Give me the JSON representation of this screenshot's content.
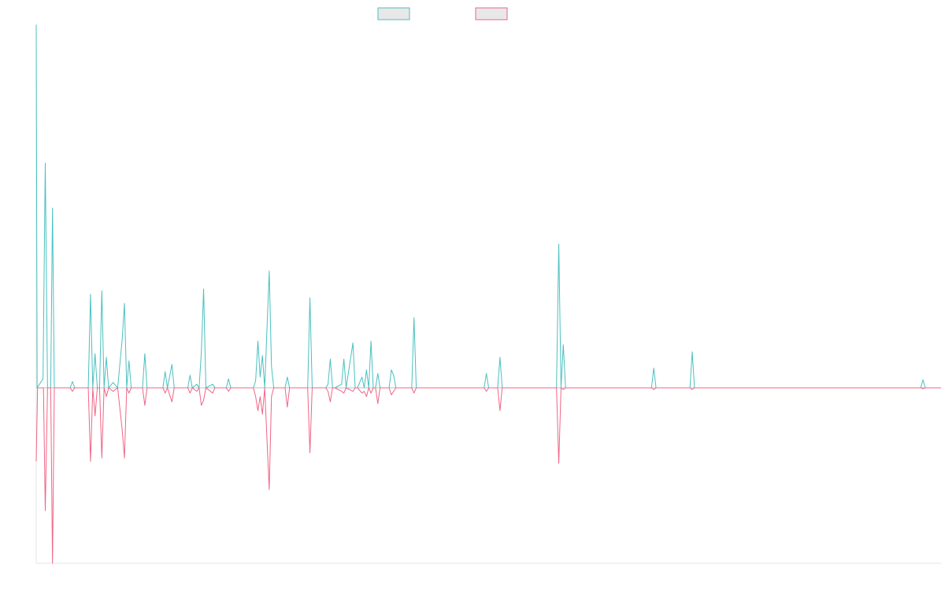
{
  "chart_data": {
    "type": "line",
    "title": "",
    "xlabel": "",
    "ylabel": "",
    "grid": false,
    "legend": "top-center",
    "xlim": [
      0,
      200
    ],
    "ylim": [
      -1.0,
      2.0
    ],
    "series": [
      {
        "color": "#4bc0c0",
        "legend_fill": "#e8e8e8",
        "points": [
          [
            0,
            2.02
          ],
          [
            0.2,
            0
          ],
          [
            1.5,
            0.05
          ],
          [
            2,
            1.25
          ],
          [
            2.5,
            0
          ],
          [
            3.2,
            0
          ],
          [
            3.6,
            1.0
          ],
          [
            4.0,
            0
          ],
          [
            7.5,
            0
          ],
          [
            8,
            0.035
          ],
          [
            8.5,
            0
          ],
          [
            11.5,
            0
          ],
          [
            12,
            0.52
          ],
          [
            12.5,
            0
          ],
          [
            13,
            0.19
          ],
          [
            13.5,
            0
          ],
          [
            14,
            0
          ],
          [
            14.5,
            0.54
          ],
          [
            15,
            0
          ],
          [
            15.5,
            0.17
          ],
          [
            16,
            0
          ],
          [
            17,
            0.03
          ],
          [
            18,
            0
          ],
          [
            19,
            0.27
          ],
          [
            19.5,
            0.47
          ],
          [
            20,
            0
          ],
          [
            20.5,
            0.15
          ],
          [
            21,
            0
          ],
          [
            23.5,
            0
          ],
          [
            24,
            0.19
          ],
          [
            24.5,
            0
          ],
          [
            28,
            0
          ],
          [
            28.5,
            0.09
          ],
          [
            29,
            0
          ],
          [
            30,
            0.13
          ],
          [
            30.5,
            0
          ],
          [
            33.5,
            0
          ],
          [
            34,
            0.07
          ],
          [
            34.5,
            0
          ],
          [
            35.5,
            0.02
          ],
          [
            36,
            0
          ],
          [
            36.5,
            0.2
          ],
          [
            37,
            0.55
          ],
          [
            37.5,
            0
          ],
          [
            39,
            0.02
          ],
          [
            39.5,
            0
          ],
          [
            42,
            0
          ],
          [
            42.5,
            0.05
          ],
          [
            43,
            0
          ],
          [
            43.5,
            0
          ],
          [
            48,
            0
          ],
          [
            48.5,
            0.04
          ],
          [
            49,
            0.26
          ],
          [
            49.5,
            0.06
          ],
          [
            50,
            0.18
          ],
          [
            50.5,
            0
          ],
          [
            51.5,
            0.65
          ],
          [
            52,
            0.12
          ],
          [
            52.5,
            0
          ],
          [
            53,
            0
          ],
          [
            55,
            0
          ],
          [
            55.5,
            0.06
          ],
          [
            56,
            0
          ],
          [
            58,
            0
          ],
          [
            58.5,
            0
          ],
          [
            60,
            0
          ],
          [
            60.5,
            0.5
          ],
          [
            61,
            0
          ],
          [
            63,
            0
          ],
          [
            63.5,
            0
          ],
          [
            64,
            0
          ],
          [
            64.5,
            0.02
          ],
          [
            65,
            0.16
          ],
          [
            65.5,
            0
          ],
          [
            66,
            0
          ],
          [
            67.5,
            0.02
          ],
          [
            68,
            0.16
          ],
          [
            68.5,
            0
          ],
          [
            70,
            0.25
          ],
          [
            70.5,
            0
          ],
          [
            71,
            0
          ],
          [
            72,
            0.06
          ],
          [
            72.5,
            0
          ],
          [
            73,
            0.1
          ],
          [
            73.5,
            0
          ],
          [
            74,
            0.26
          ],
          [
            74.5,
            0
          ],
          [
            75,
            0
          ],
          [
            75.5,
            0.08
          ],
          [
            76,
            0
          ],
          [
            78,
            0
          ],
          [
            78.5,
            0.1
          ],
          [
            79,
            0.07
          ],
          [
            79.5,
            0.0
          ],
          [
            83,
            0
          ],
          [
            83.5,
            0.39
          ],
          [
            84,
            0
          ],
          [
            96.5,
            0
          ],
          [
            99,
            0
          ],
          [
            99.5,
            0.08
          ],
          [
            100,
            0
          ],
          [
            102,
            0
          ],
          [
            102.5,
            0.17
          ],
          [
            103,
            0
          ],
          [
            105,
            0
          ],
          [
            115,
            0
          ],
          [
            115.5,
            0.8
          ],
          [
            116,
            0
          ],
          [
            116.5,
            0.24
          ],
          [
            117,
            0
          ],
          [
            136,
            0
          ],
          [
            136.5,
            0.11
          ],
          [
            137,
            0
          ],
          [
            144.5,
            0
          ],
          [
            145,
            0.2
          ],
          [
            145.5,
            0
          ],
          [
            195.5,
            0
          ],
          [
            196,
            0.045
          ],
          [
            196.5,
            0
          ],
          [
            200,
            0
          ]
        ]
      },
      {
        "color": "#f06586",
        "legend_fill": "#e8e8e8",
        "points": [
          [
            0,
            -0.42
          ],
          [
            0.3,
            0
          ],
          [
            1.6,
            0
          ],
          [
            2,
            -0.7
          ],
          [
            2.5,
            0
          ],
          [
            3.2,
            0
          ],
          [
            3.6,
            -1.0
          ],
          [
            4.0,
            0
          ],
          [
            7.5,
            0
          ],
          [
            8,
            -0.02
          ],
          [
            8.5,
            0
          ],
          [
            11.5,
            0
          ],
          [
            12,
            -0.42
          ],
          [
            12.5,
            0
          ],
          [
            13,
            -0.16
          ],
          [
            13.5,
            0
          ],
          [
            14,
            0
          ],
          [
            14.5,
            -0.4
          ],
          [
            15,
            0
          ],
          [
            15.5,
            -0.05
          ],
          [
            16,
            0
          ],
          [
            17,
            -0.02
          ],
          [
            18,
            0
          ],
          [
            19,
            -0.24
          ],
          [
            19.5,
            -0.4
          ],
          [
            20,
            0
          ],
          [
            20.5,
            -0.03
          ],
          [
            21,
            0
          ],
          [
            23.5,
            0
          ],
          [
            24,
            -0.1
          ],
          [
            24.5,
            0
          ],
          [
            28,
            0
          ],
          [
            28.5,
            -0.03
          ],
          [
            29,
            0
          ],
          [
            30,
            -0.08
          ],
          [
            30.5,
            0
          ],
          [
            33.5,
            0
          ],
          [
            34,
            -0.03
          ],
          [
            34.5,
            0
          ],
          [
            35.5,
            -0.02
          ],
          [
            36,
            0
          ],
          [
            36.5,
            -0.1
          ],
          [
            37,
            -0.07
          ],
          [
            37.5,
            0
          ],
          [
            39,
            -0.03
          ],
          [
            39.5,
            0
          ],
          [
            42,
            0
          ],
          [
            42.5,
            -0.02
          ],
          [
            43,
            0
          ],
          [
            43.5,
            0
          ],
          [
            48,
            0
          ],
          [
            48.5,
            -0.05
          ],
          [
            49,
            -0.13
          ],
          [
            49.5,
            -0.05
          ],
          [
            50,
            -0.15
          ],
          [
            50.5,
            0
          ],
          [
            51.5,
            -0.58
          ],
          [
            52,
            -0.05
          ],
          [
            52.5,
            0
          ],
          [
            53,
            0
          ],
          [
            55,
            0
          ],
          [
            55.5,
            -0.11
          ],
          [
            56,
            0
          ],
          [
            58,
            0
          ],
          [
            58.5,
            0
          ],
          [
            60,
            0
          ],
          [
            60.5,
            -0.37
          ],
          [
            61,
            0
          ],
          [
            63,
            0
          ],
          [
            63.5,
            0
          ],
          [
            64,
            0
          ],
          [
            64.5,
            -0.02
          ],
          [
            65,
            -0.08
          ],
          [
            65.5,
            0
          ],
          [
            66,
            0
          ],
          [
            67.5,
            -0.02
          ],
          [
            68,
            -0.03
          ],
          [
            68.5,
            0
          ],
          [
            70,
            -0.02
          ],
          [
            70.5,
            0
          ],
          [
            71,
            0
          ],
          [
            72,
            -0.03
          ],
          [
            72.5,
            -0.02
          ],
          [
            73,
            -0.05
          ],
          [
            73.5,
            0
          ],
          [
            74,
            -0.03
          ],
          [
            74.5,
            0
          ],
          [
            75,
            0
          ],
          [
            75.5,
            -0.09
          ],
          [
            76,
            0
          ],
          [
            78,
            0
          ],
          [
            78.5,
            -0.04
          ],
          [
            79,
            -0.02
          ],
          [
            79.5,
            0.0
          ],
          [
            83,
            0
          ],
          [
            83.5,
            -0.03
          ],
          [
            84,
            0
          ],
          [
            96.5,
            0
          ],
          [
            99,
            0
          ],
          [
            99.5,
            -0.02
          ],
          [
            100,
            0
          ],
          [
            102,
            0
          ],
          [
            102.5,
            -0.13
          ],
          [
            103,
            0
          ],
          [
            105,
            0
          ],
          [
            115,
            0
          ],
          [
            115.5,
            -0.43
          ],
          [
            116,
            0
          ],
          [
            116.5,
            -0.01
          ],
          [
            117,
            0
          ],
          [
            136,
            0
          ],
          [
            136.5,
            -0.01
          ],
          [
            137,
            0
          ],
          [
            144.5,
            0
          ],
          [
            145,
            -0.01
          ],
          [
            145.5,
            0
          ],
          [
            195.5,
            0
          ],
          [
            196,
            -0.005
          ],
          [
            196.5,
            0
          ],
          [
            200,
            0
          ]
        ]
      }
    ]
  }
}
